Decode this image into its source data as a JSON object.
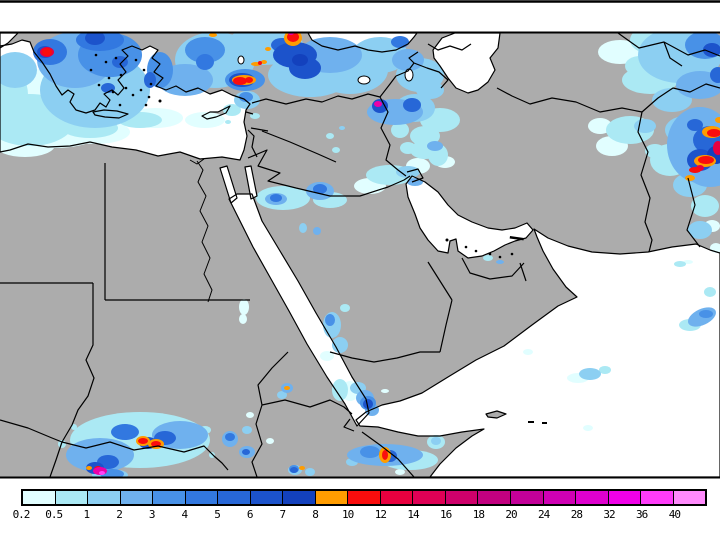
{
  "map": {
    "land_color": "#ACACAC",
    "sea_color": "#FFFFFF",
    "coast_color": "#000000",
    "frame_color": "#000000"
  },
  "legend": {
    "tick_labels": [
      "0.2",
      "0.5",
      "1",
      "2",
      "3",
      "4",
      "5",
      "6",
      "7",
      "8",
      "10",
      "12",
      "14",
      "16",
      "18",
      "20",
      "24",
      "28",
      "32",
      "36",
      "40"
    ],
    "cell_colors": [
      "#E1FEFF",
      "#ABE9F4",
      "#8CCFF2",
      "#6FB1EE",
      "#4891E7",
      "#3278E0",
      "#2767D7",
      "#1C53CB",
      "#1341BD",
      "#FF9C00",
      "#FA0D0D",
      "#E8003F",
      "#DE0055",
      "#CE006B",
      "#C20080",
      "#C30099",
      "#CF00B4",
      "#DE00CE",
      "#F000E8",
      "#FF3CFA",
      "#FF8AFC"
    ],
    "border_color": "#000000"
  }
}
